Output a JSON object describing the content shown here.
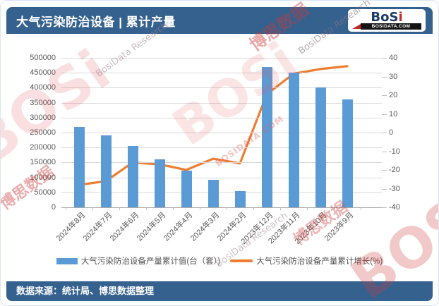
{
  "theme": {
    "header_bg": "#35618F",
    "footer_bg": "#35618F",
    "bar_color": "#5B9BD5",
    "line_color": "#ED7D31",
    "logo_navy": "#1B3A66",
    "logo_red": "#C62828"
  },
  "header": {
    "title": "大气污染防治设备 | 累计产量",
    "logo": {
      "name_dark": "BoS",
      "name_red": "i",
      "domain": "BOSIDATA.COM"
    }
  },
  "footer": {
    "source": "数据来源：统计局、博思数据整理"
  },
  "watermark": {
    "brand": "BOSi",
    "domain": "BOSIDATA.COM",
    "cn_name": "博思数据",
    "en_name": "BosiData Research"
  },
  "chart_data": {
    "type": "bar+line",
    "title": "大气污染防治设备 | 累计产量",
    "categories": [
      "2024年8月",
      "2024年7月",
      "2024年6月",
      "2024年5月",
      "2024年4月",
      "2024年3月",
      "2024年2月",
      "2023年12月",
      "2023年11月",
      "2023年10月",
      "2023年9月"
    ],
    "series": [
      {
        "name": "大气污染防治设备产量累计值(台（套）)",
        "type": "bar",
        "axis": "left",
        "color": "#5B9BD5",
        "values": [
          270000,
          240000,
          205000,
          160000,
          122000,
          92000,
          55000,
          470000,
          450000,
          402000,
          360000
        ]
      },
      {
        "name": "大气污染防治设备产量累计增长(%)",
        "type": "line",
        "axis": "right",
        "color": "#ED7D31",
        "values": [
          -28,
          -26,
          -16,
          -17,
          -20,
          -14,
          -16.5,
          20.5,
          31.5,
          34,
          35.5
        ]
      }
    ],
    "left_axis": {
      "min": 0,
      "max": 500000,
      "step": 50000,
      "ticks": [
        "500000",
        "450000",
        "400000",
        "350000",
        "300000",
        "250000",
        "200000",
        "150000",
        "100000",
        "50000",
        "0"
      ]
    },
    "right_axis": {
      "min": -40,
      "max": 40,
      "step": 10,
      "ticks": [
        "40",
        "30",
        "20",
        "10",
        "0",
        "-10",
        "-20",
        "-30",
        "-40"
      ]
    },
    "grid": true,
    "legend_position": "bottom"
  }
}
